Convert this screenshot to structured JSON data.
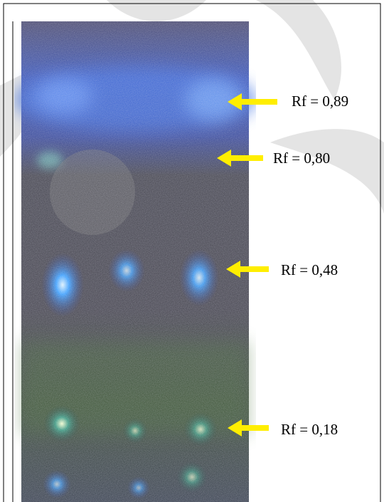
{
  "annotations": [
    {
      "label": "Rf = 0,89"
    },
    {
      "label": "Rf = 0,80"
    },
    {
      "label": "Rf = 0,48"
    },
    {
      "label": "Rf = 0,18"
    }
  ]
}
